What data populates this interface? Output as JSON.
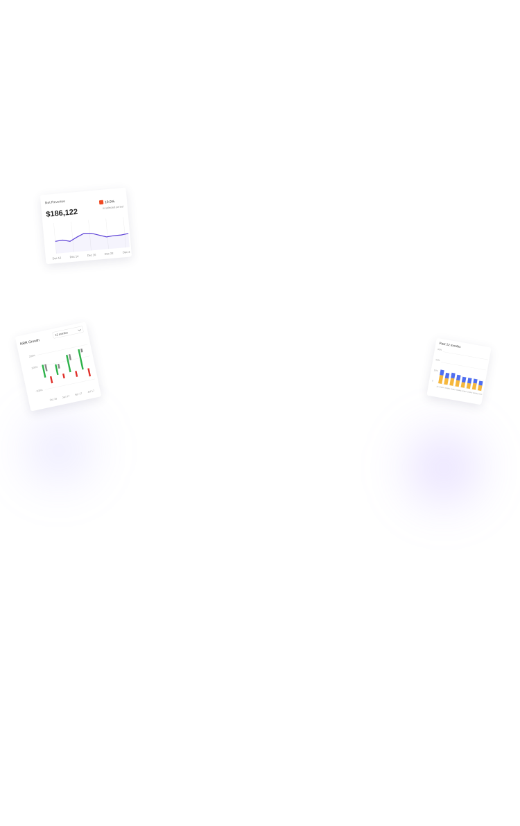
{
  "cards": [
    {
      "chart": {
        "type": "line",
        "title": "Net Revenue",
        "headline": "$186,122",
        "badge": "19.9%",
        "note": "in selected period",
        "categories": [
          "Dec 12",
          "Dec 14",
          "Dec 16",
          "Dec 22",
          "Dec 2"
        ],
        "values": [
          40,
          42,
          36,
          48,
          58,
          56,
          48,
          40,
          42,
          42,
          45
        ],
        "color": "#5b3fd6",
        "ylim": [
          0,
          100
        ],
        "grid": true
      }
    },
    {
      "chart": {
        "type": "bar",
        "title": "NRR Growth",
        "dropdown": "12 months",
        "categories": [
          "Oct 16",
          "Jan 17",
          "Apr 17",
          "Jul 17"
        ],
        "series": [
          {
            "color": "#2db24a",
            "values": [
              110,
              90,
              150,
              175
            ]
          },
          {
            "color": "#8a8a8a",
            "values": [
              60,
              40,
              50,
              30
            ]
          },
          {
            "color": "#e0302a",
            "values": [
              -60,
              -40,
              -50,
              -70
            ]
          }
        ],
        "ylim": [
          -150,
          250
        ],
        "yticks": [
          {
            "value": 200,
            "label": "200%"
          },
          {
            "value": 100,
            "label": "100%"
          },
          {
            "value": -100,
            "label": "-100%"
          }
        ]
      }
    },
    {
      "chart": {
        "type": "stacked-bar",
        "title": "Past 12 months",
        "categories": [
          "Jan 2018",
          "Feb 2018",
          "Mar 2018",
          "Apr 2018",
          "May 2018",
          "Jun 2018",
          "Jul 2018",
          "Aug 2018"
        ],
        "series": [
          {
            "color": "#f6b73c",
            "values": [
              8,
              6,
              7,
              6,
              5,
              5,
              6,
              5
            ]
          },
          {
            "color": "#4f6ef0",
            "values": [
              5,
              5,
              5,
              5,
              5,
              5,
              4,
              4
            ]
          }
        ],
        "ylim": [
          0,
          30
        ],
        "yticks": [
          0,
          {
            "value": 10,
            "label": "10%"
          },
          {
            "value": 20,
            "label": "20%"
          },
          {
            "value": 30,
            "label": "30%"
          }
        ]
      }
    }
  ]
}
